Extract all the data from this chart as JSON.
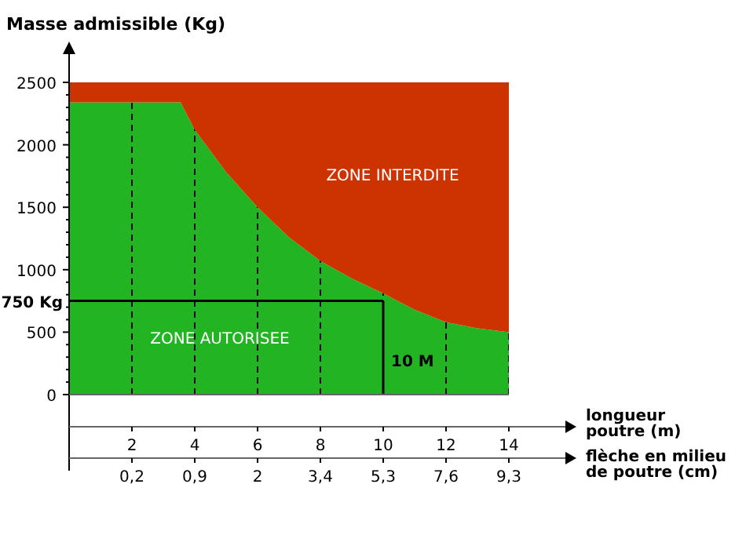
{
  "chart_data": [
    {
      "type": "area",
      "stacked": true,
      "ylabel": "Masse admissible (Kg)",
      "xlabel": "longueur poutre (m)",
      "x": [
        0,
        3.55,
        4,
        5,
        6,
        7,
        8,
        9,
        10,
        11,
        12,
        13,
        14
      ],
      "series": [
        {
          "color": "#22b422",
          "values": [
            2340,
            2340,
            2120,
            1780,
            1500,
            1260,
            1070,
            930,
            810,
            680,
            580,
            530,
            500
          ]
        },
        {
          "color": "#cc3300",
          "values": [
            160,
            160,
            380,
            720,
            1000,
            1240,
            1430,
            1570,
            1690,
            1820,
            1920,
            1970,
            2000
          ]
        }
      ],
      "xlim": [
        0,
        15.8
      ],
      "xticks": [
        2,
        4,
        6,
        8,
        10,
        12,
        14
      ],
      "ylim": [
        0,
        2500
      ],
      "yticks": [
        0,
        {
          "value": 100,
          "label": null
        },
        {
          "value": 200,
          "label": null
        },
        {
          "value": 300,
          "label": null
        },
        {
          "value": 400,
          "label": null
        },
        500,
        {
          "value": 600,
          "label": null
        },
        {
          "value": 700,
          "label": null
        },
        {
          "value": 800,
          "label": null
        },
        {
          "value": 900,
          "label": null
        },
        1000,
        {
          "value": 1100,
          "label": null
        },
        {
          "value": 1200,
          "label": null
        },
        {
          "value": 1300,
          "label": null
        },
        {
          "value": 1400,
          "label": null
        },
        1500,
        {
          "value": 1600,
          "label": null
        },
        {
          "value": 1700,
          "label": null
        },
        {
          "value": 1800,
          "label": null
        },
        {
          "value": 1900,
          "label": null
        },
        2000,
        {
          "value": 2100,
          "label": null
        },
        {
          "value": 2200,
          "label": null
        },
        {
          "value": 2300,
          "label": null
        },
        {
          "value": 2400,
          "label": null
        },
        2500
      ],
      "grid": "x",
      "ref_lines": [
        {
          "axis": "y",
          "value": 750,
          "label": "750 Kg",
          "color": "#000000"
        },
        {
          "axis": "x",
          "value": 10,
          "label": "10 M",
          "color": "#000000"
        }
      ],
      "annotations": [
        "ZONE INTERDITE",
        "ZONE AUTORISEE"
      ]
    },
    {
      "type": "other",
      "xlabel": "flèche en milieu de poutre (cm)",
      "categories": [
        "0,2",
        "0,9",
        "2",
        "3,4",
        "5,3",
        "7,6",
        "9,3"
      ]
    }
  ]
}
